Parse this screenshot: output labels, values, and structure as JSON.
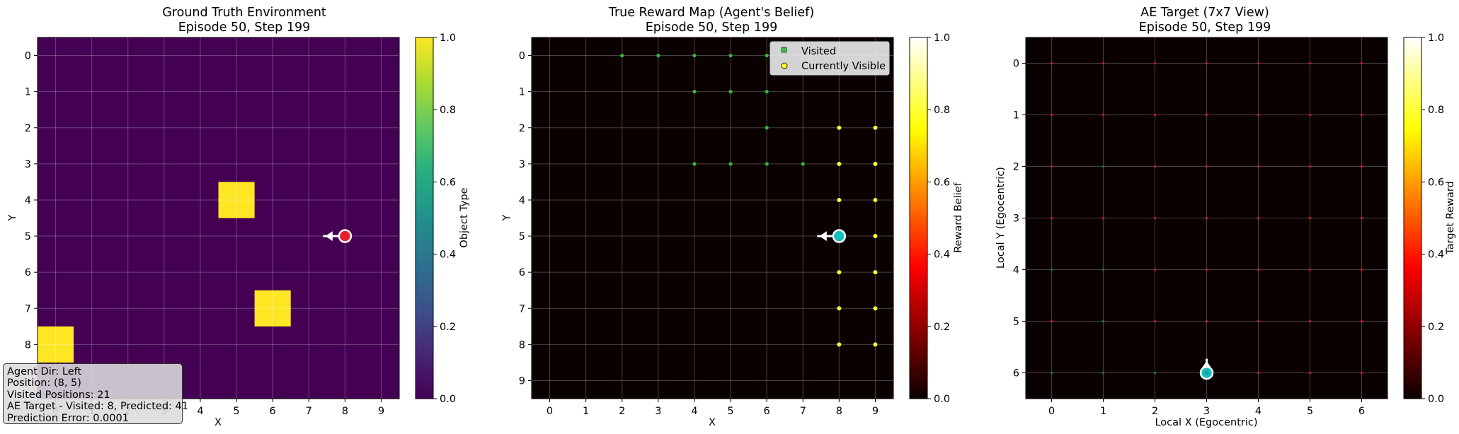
{
  "chart_data": [
    {
      "type": "heatmap",
      "title": "Ground Truth Environment",
      "subtitle": "Episode 50, Step 199",
      "xlabel": "X",
      "ylabel": "Y",
      "x_ticks": [
        "0",
        "1",
        "2",
        "3",
        "4",
        "5",
        "6",
        "7",
        "8",
        "9"
      ],
      "y_ticks": [
        "0",
        "1",
        "2",
        "3",
        "4",
        "5",
        "6",
        "7",
        "8"
      ],
      "xlim": [
        -0.5,
        9.5
      ],
      "ylim": [
        9.5,
        -0.5
      ],
      "grid": true,
      "colormap": "viridis",
      "colorbar": {
        "label": "Object Type",
        "range": [
          0,
          1
        ],
        "ticks": [
          "0.0",
          "0.2",
          "0.4",
          "0.6",
          "0.8",
          "1.0"
        ]
      },
      "background_value": 0,
      "objects": [
        {
          "x": 5,
          "y": 4,
          "value": 1
        },
        {
          "x": 6,
          "y": 7,
          "value": 1
        },
        {
          "x": 0,
          "y": 8,
          "value": 1
        }
      ],
      "agent": {
        "x": 8,
        "y": 5,
        "direction": "left",
        "color": "#e8202a"
      },
      "info_box": [
        "Agent Dir: Left",
        "Position: (8, 5)",
        "Visited Positions: 21",
        "AE Target - Visited: 8, Predicted: 41",
        "Prediction Error: 0.0001"
      ]
    },
    {
      "type": "heatmap",
      "title": "True Reward Map (Agent's Belief)",
      "subtitle": "Episode 50, Step 199",
      "xlabel": "X",
      "ylabel": "Y",
      "x_ticks": [
        "0",
        "1",
        "2",
        "3",
        "4",
        "5",
        "6",
        "7",
        "8",
        "9"
      ],
      "y_ticks": [
        "0",
        "1",
        "2",
        "3",
        "4",
        "5",
        "6",
        "7",
        "8",
        "9"
      ],
      "xlim": [
        -0.5,
        9.5
      ],
      "ylim": [
        9.5,
        -0.5
      ],
      "grid": true,
      "colormap": "hot",
      "colorbar": {
        "label": "Reward Belief",
        "range": [
          0,
          1
        ],
        "ticks": [
          "0.0",
          "0.2",
          "0.4",
          "0.6",
          "0.8",
          "1.0"
        ]
      },
      "background_value": 0,
      "legend": {
        "location": "top-right",
        "entries": [
          "Visited",
          "Currently Visible"
        ]
      },
      "visited": [
        [
          2,
          0
        ],
        [
          3,
          0
        ],
        [
          4,
          0
        ],
        [
          5,
          0
        ],
        [
          6,
          0
        ],
        [
          4,
          1
        ],
        [
          5,
          1
        ],
        [
          6,
          1
        ],
        [
          6,
          2
        ],
        [
          4,
          3
        ],
        [
          5,
          3
        ],
        [
          6,
          3
        ],
        [
          7,
          3
        ]
      ],
      "currently_visible": [
        [
          8,
          2
        ],
        [
          9,
          2
        ],
        [
          8,
          3
        ],
        [
          9,
          3
        ],
        [
          8,
          4
        ],
        [
          9,
          4
        ],
        [
          9,
          5
        ],
        [
          8,
          6
        ],
        [
          9,
          6
        ],
        [
          8,
          7
        ],
        [
          9,
          7
        ],
        [
          8,
          8
        ],
        [
          9,
          8
        ]
      ],
      "agent": {
        "x": 8,
        "y": 5,
        "direction": "left",
        "color": "#17bfbf"
      }
    },
    {
      "type": "heatmap",
      "title": "AE Target (7x7 View)",
      "subtitle": "Episode 50, Step 199",
      "xlabel": "Local X (Egocentric)",
      "ylabel": "Local Y (Egocentric)",
      "x_ticks": [
        "0",
        "1",
        "2",
        "3",
        "4",
        "5",
        "6"
      ],
      "y_ticks": [
        "0",
        "1",
        "2",
        "3",
        "4",
        "5",
        "6"
      ],
      "xlim": [
        -0.5,
        6.5
      ],
      "ylim": [
        6.5,
        -0.5
      ],
      "grid": true,
      "colormap": "hot",
      "colorbar": {
        "label": "Target Reward",
        "range": [
          0,
          1
        ],
        "ticks": [
          "0.0",
          "0.2",
          "0.4",
          "0.6",
          "0.8",
          "1.0"
        ]
      },
      "background_value": 0,
      "predicted_marker_color": "#c0181e",
      "visited_marker_color": "#1a7a1a",
      "visited_cells": [
        [
          1,
          2
        ],
        [
          0,
          4
        ],
        [
          1,
          4
        ],
        [
          1,
          5
        ],
        [
          0,
          6
        ],
        [
          1,
          6
        ],
        [
          2,
          6
        ]
      ],
      "agent": {
        "x": 3,
        "y": 6,
        "direction": "up",
        "color": "#17bfbf"
      }
    }
  ]
}
